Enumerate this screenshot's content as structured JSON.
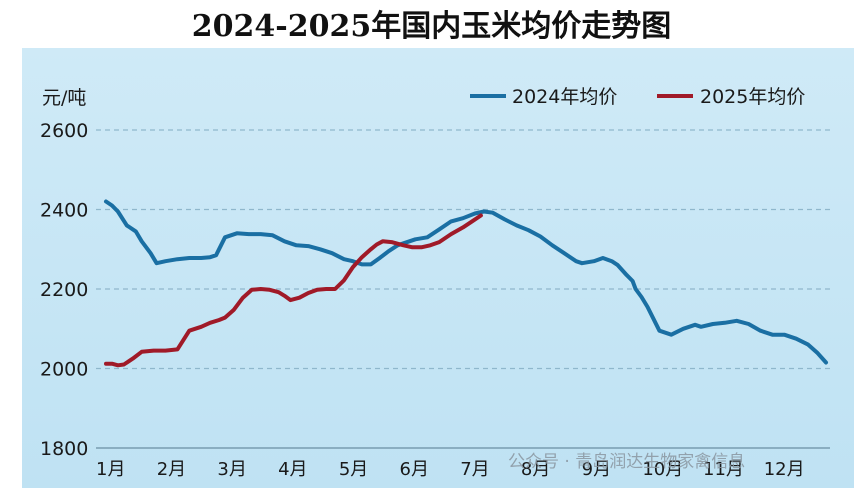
{
  "chart_data": {
    "type": "line",
    "title": "2024-2025年国内玉米均价走势图",
    "ylabel": "元/吨",
    "ylim": [
      1800,
      2600
    ],
    "yticks": [
      2600,
      2400,
      2200,
      2000,
      1800
    ],
    "grid": "horizontal-dashed",
    "legend_placement": "top-right",
    "month_labels": [
      "1月",
      "2月",
      "3月",
      "4月",
      "5月",
      "6月",
      "7月",
      "8月",
      "9月",
      "10月",
      "11月",
      "12月"
    ],
    "series": [
      {
        "name": "2024年均价",
        "color": "#1a6fa3",
        "x": [
          1.0,
          1.1,
          1.2,
          1.35,
          1.5,
          1.6,
          1.75,
          1.85,
          2.0,
          2.2,
          2.4,
          2.6,
          2.75,
          2.85,
          3.0,
          3.2,
          3.4,
          3.6,
          3.8,
          4.0,
          4.2,
          4.4,
          4.6,
          4.8,
          5.0,
          5.15,
          5.3,
          5.45,
          5.6,
          5.75,
          5.9,
          6.0,
          6.2,
          6.4,
          6.6,
          6.8,
          7.0,
          7.2,
          7.35,
          7.5,
          7.7,
          7.9,
          8.1,
          8.3,
          8.5,
          8.7,
          8.9,
          9.0,
          9.2,
          9.35,
          9.5,
          9.6,
          9.75,
          9.85,
          9.9,
          10.0,
          10.1,
          10.3,
          10.5,
          10.7,
          10.9,
          11.0,
          11.2,
          11.4,
          11.6,
          11.8,
          12.0,
          12.2,
          12.4,
          12.6,
          12.8,
          12.95,
          13.1
        ],
        "values": [
          2420,
          2410,
          2395,
          2360,
          2345,
          2320,
          2290,
          2265,
          2270,
          2275,
          2278,
          2278,
          2280,
          2285,
          2330,
          2340,
          2338,
          2338,
          2335,
          2320,
          2310,
          2308,
          2300,
          2290,
          2275,
          2270,
          2262,
          2262,
          2278,
          2295,
          2310,
          2315,
          2325,
          2330,
          2350,
          2370,
          2378,
          2390,
          2395,
          2392,
          2375,
          2360,
          2348,
          2332,
          2310,
          2290,
          2270,
          2265,
          2270,
          2278,
          2270,
          2260,
          2235,
          2220,
          2200,
          2180,
          2155,
          2095,
          2085,
          2100,
          2110,
          2105,
          2112,
          2115,
          2120,
          2112,
          2095,
          2085,
          2085,
          2075,
          2060,
          2040,
          2015
        ]
      },
      {
        "name": "2025年均价",
        "color": "#a01a28",
        "x": [
          1.0,
          1.1,
          1.2,
          1.3,
          1.45,
          1.6,
          1.8,
          2.0,
          2.2,
          2.4,
          2.6,
          2.75,
          2.9,
          3.0,
          3.15,
          3.3,
          3.45,
          3.6,
          3.75,
          3.9,
          4.0,
          4.1,
          4.25,
          4.4,
          4.55,
          4.7,
          4.85,
          5.0,
          5.15,
          5.3,
          5.45,
          5.55,
          5.65,
          5.8,
          6.0,
          6.15,
          6.3,
          6.45,
          6.6,
          6.8,
          7.0,
          7.15,
          7.3
        ],
        "values": [
          2012,
          2012,
          2008,
          2010,
          2025,
          2042,
          2045,
          2045,
          2048,
          2095,
          2105,
          2115,
          2122,
          2128,
          2148,
          2178,
          2198,
          2200,
          2198,
          2192,
          2183,
          2172,
          2178,
          2190,
          2198,
          2200,
          2200,
          2222,
          2255,
          2280,
          2300,
          2312,
          2320,
          2318,
          2310,
          2305,
          2305,
          2310,
          2318,
          2338,
          2355,
          2370,
          2385
        ]
      }
    ]
  },
  "watermark": {
    "text": "公众号 · 青岛润达生物家禽信息"
  }
}
